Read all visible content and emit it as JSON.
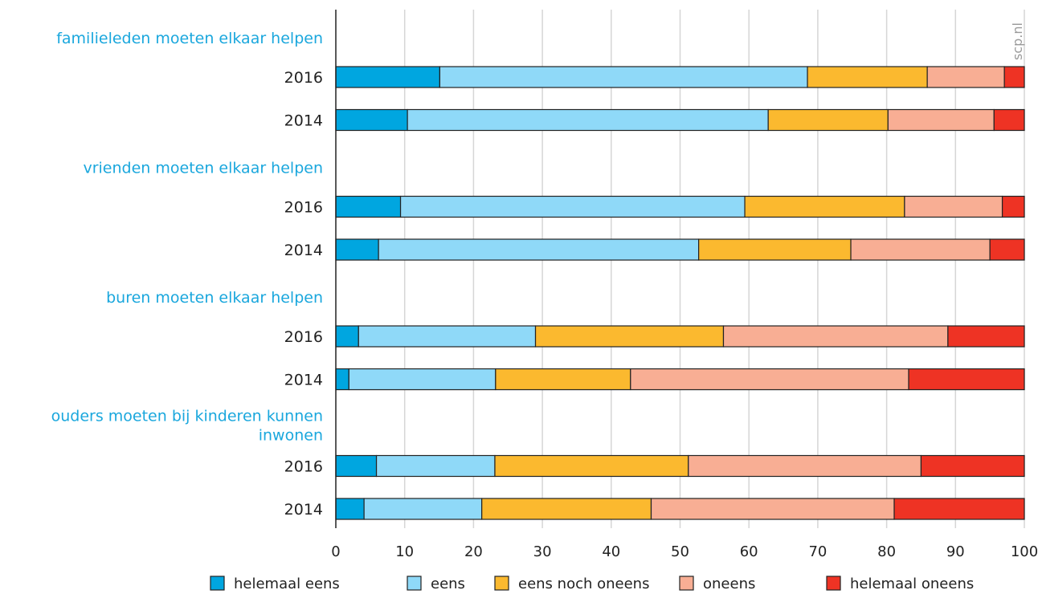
{
  "chart_data": {
    "type": "bar",
    "orientation": "horizontal",
    "stacked": true,
    "watermark": "scp.nl",
    "xlim": [
      0,
      100
    ],
    "xticks": [
      0,
      10,
      20,
      30,
      40,
      50,
      60,
      70,
      80,
      90,
      100
    ],
    "grid": true,
    "legend_position": "bottom",
    "series": [
      {
        "name": "helemaal eens",
        "color": "#00a6e0"
      },
      {
        "name": "eens",
        "color": "#8fd9f8"
      },
      {
        "name": "eens noch oneens",
        "color": "#fbb92f"
      },
      {
        "name": "oneens",
        "color": "#f8ae94"
      },
      {
        "name": "helemaal oneens",
        "color": "#ee3324"
      }
    ],
    "groups": [
      {
        "label_lines": [
          "familieleden moeten elkaar helpen"
        ],
        "rows": [
          {
            "year": "2016",
            "values": [
              15.1,
              53.4,
              17.4,
              11.2,
              2.9
            ]
          },
          {
            "year": "2014",
            "values": [
              10.4,
              52.4,
              17.4,
              15.4,
              4.4
            ]
          }
        ]
      },
      {
        "label_lines": [
          "vrienden moeten elkaar helpen"
        ],
        "rows": [
          {
            "year": "2016",
            "values": [
              9.4,
              50.0,
              23.2,
              14.2,
              3.2
            ]
          },
          {
            "year": "2014",
            "values": [
              6.2,
              46.5,
              22.1,
              20.2,
              5.0
            ]
          }
        ]
      },
      {
        "label_lines": [
          "buren moeten elkaar helpen"
        ],
        "rows": [
          {
            "year": "2016",
            "values": [
              3.3,
              25.7,
              27.3,
              32.6,
              11.1
            ]
          },
          {
            "year": "2014",
            "values": [
              1.9,
              21.3,
              19.6,
              40.4,
              16.8
            ]
          }
        ]
      },
      {
        "label_lines": [
          "ouders moeten bij kinderen kunnen",
          "inwonen"
        ],
        "rows": [
          {
            "year": "2016",
            "values": [
              5.9,
              17.2,
              28.1,
              33.8,
              15.0
            ]
          },
          {
            "year": "2014",
            "values": [
              4.1,
              17.1,
              24.6,
              35.3,
              18.9
            ]
          }
        ]
      }
    ]
  }
}
